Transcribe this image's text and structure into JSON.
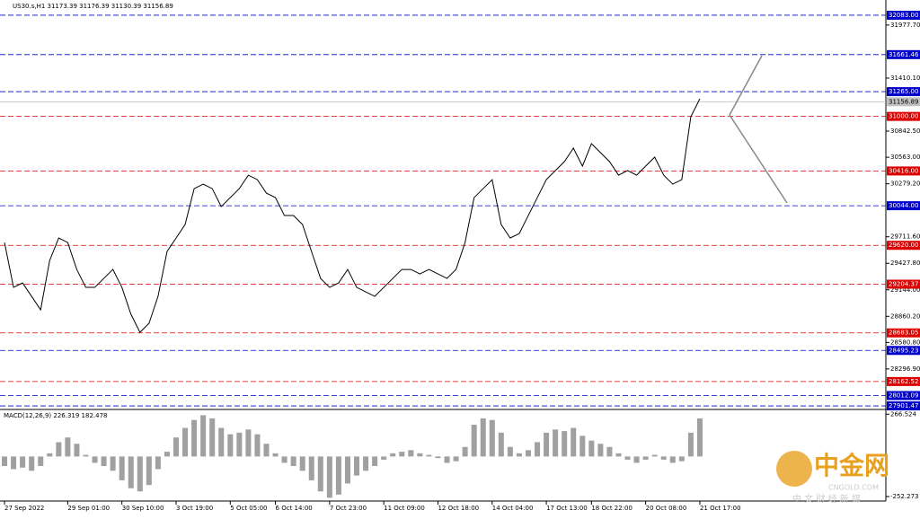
{
  "chart_data": [
    {
      "type": "line",
      "title": "US30.s,H1  31173.39 31176.39 31130.39 31156.89",
      "color": "#000000",
      "values": [
        29650,
        29170,
        29218,
        29074,
        28930,
        29458,
        29698,
        29650,
        29362,
        29170,
        29170,
        29266,
        29362,
        29170,
        28882,
        28689,
        28785,
        29074,
        29554,
        29698,
        29843,
        30227,
        30275,
        30227,
        30035,
        30131,
        30227,
        30371,
        30323,
        30179,
        30131,
        29939,
        29939,
        29843,
        29554,
        29266,
        29170,
        29218,
        29362,
        29170,
        29122,
        29074,
        29170,
        29266,
        29362,
        29362,
        29314,
        29362,
        29314,
        29266,
        29362,
        29650,
        30131,
        30227,
        30323,
        29843,
        29698,
        29746,
        29939,
        30131,
        30323,
        30420,
        30516,
        30660,
        30468,
        30708,
        30612,
        30516,
        30371,
        30420,
        30371,
        30468,
        30564,
        30371,
        30275,
        30323,
        30996,
        31189
      ],
      "xlim": [
        -0.5,
        97.6
      ],
      "ylim": [
        27873,
        32246
      ],
      "xticks": [
        {
          "value": 0,
          "label": "27 Sep 2022"
        },
        {
          "value": 7,
          "label": "29 Sep 01:00"
        },
        {
          "value": 13,
          "label": "30 Sep 10:00"
        },
        {
          "value": 19,
          "label": "3 Oct 19:00"
        },
        {
          "value": 25,
          "label": "5 Oct 05:00"
        },
        {
          "value": 30,
          "label": "6 Oct 14:00"
        },
        {
          "value": 36,
          "label": "7 Oct 23:00"
        },
        {
          "value": 42,
          "label": "11 Oct 09:00"
        },
        {
          "value": 48,
          "label": "12 Oct 18:00"
        },
        {
          "value": 54,
          "label": "14 Oct 04:00"
        },
        {
          "value": 60,
          "label": "17 Oct 13:00"
        },
        {
          "value": 65,
          "label": "18 Oct 22:00"
        },
        {
          "value": 71,
          "label": "20 Oct 08:00"
        },
        {
          "value": 77,
          "label": "21 Oct 17:00"
        }
      ],
      "yticks": [
        {
          "value": 31977.7,
          "label": "31977.70"
        },
        {
          "value": 31410.1,
          "label": "31410.10"
        },
        {
          "value": 30842.5,
          "label": "30842.50"
        },
        {
          "value": 30563,
          "label": "30563.00"
        },
        {
          "value": 30279.2,
          "label": "30279.20"
        },
        {
          "value": 29711.6,
          "label": "29711.60"
        },
        {
          "value": 29427.8,
          "label": "29427.80"
        },
        {
          "value": 29144,
          "label": "29144.00"
        },
        {
          "value": 28860.2,
          "label": "28860.20"
        },
        {
          "value": 28580.8,
          "label": "28580.80"
        },
        {
          "value": 28296.9,
          "label": "28296.90"
        }
      ],
      "levels": [
        {
          "value": 32083,
          "label": "32083.00",
          "color": "#0000cc"
        },
        {
          "value": 31661.46,
          "label": "31661.46",
          "color": "#0000cc"
        },
        {
          "value": 31265,
          "label": "31265.00",
          "color": "#0000cc"
        },
        {
          "value": 31000,
          "label": "31000.00",
          "color": "#dd0000"
        },
        {
          "value": 30416,
          "label": "30416.00",
          "color": "#dd0000"
        },
        {
          "value": 30044,
          "label": "30044.00",
          "color": "#0000cc"
        },
        {
          "value": 29620,
          "label": "29620.00",
          "color": "#dd0000"
        },
        {
          "value": 29204.37,
          "label": "29204.37",
          "color": "#dd0000"
        },
        {
          "value": 28683.05,
          "label": "28683.05",
          "color": "#dd0000"
        },
        {
          "value": 28495.23,
          "label": "28495.23",
          "color": "#0000cc"
        },
        {
          "value": 28162.52,
          "label": "28162.52",
          "color": "#dd0000"
        },
        {
          "value": 28012.09,
          "label": "28012.09",
          "color": "#0000cc"
        },
        {
          "value": 27901.47,
          "label": "27901.47",
          "color": "#0000cc"
        }
      ],
      "last": {
        "value": 31156.89,
        "label": "31156.89",
        "color": "#c0c0c0"
      }
    },
    {
      "type": "bar",
      "title": "MACD(12,26,9) 226.319 182.478",
      "color": "#a0a0a0",
      "values": [
        -60,
        -80,
        -70,
        -90,
        -60,
        20,
        90,
        120,
        80,
        10,
        -40,
        -60,
        -90,
        -150,
        -200,
        -220,
        -180,
        -80,
        30,
        120,
        180,
        230,
        260,
        240,
        180,
        140,
        150,
        170,
        140,
        80,
        20,
        -40,
        -60,
        -90,
        -150,
        -220,
        -260,
        -240,
        -170,
        -120,
        -90,
        -60,
        -20,
        20,
        30,
        40,
        20,
        10,
        -10,
        -40,
        -30,
        60,
        200,
        240,
        230,
        150,
        60,
        20,
        40,
        90,
        150,
        170,
        160,
        180,
        130,
        100,
        80,
        60,
        20,
        -20,
        -40,
        -20,
        10,
        -20,
        -40,
        -30,
        150,
        240
      ],
      "ylim": [
        -275,
        285
      ],
      "yticks": [
        266.524,
        -252.273
      ]
    }
  ],
  "watermark": {
    "brand": "中金网",
    "site": "CNGOLD.COM",
    "slogan": "中 文 财 经 新 媒"
  }
}
